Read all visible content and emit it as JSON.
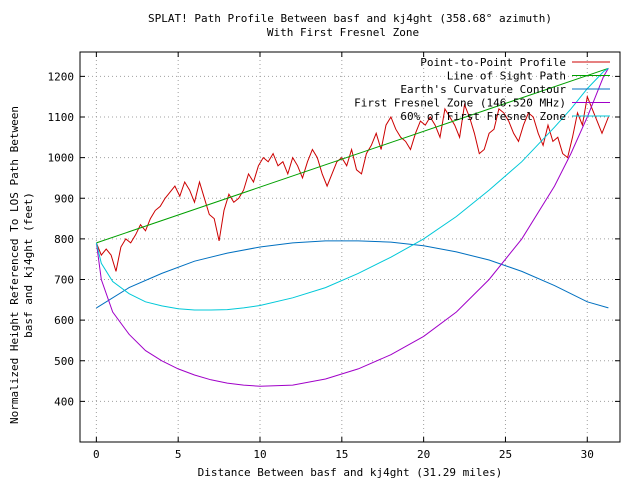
{
  "chart_data": {
    "type": "line",
    "title": "SPLAT! Path Profile Between basf and kj4ght (358.68° azimuth)",
    "subtitle": "With First Fresnel Zone",
    "xlabel": "Distance Between basf and kj4ght (31.29 miles)",
    "ylabel_line1": "Normalized Height Referenced To LOS Path Between",
    "ylabel_line2": "basf and kj4ght (feet)",
    "xlim": [
      -1,
      32
    ],
    "ylim": [
      300,
      1260
    ],
    "x_ticks": [
      0,
      5,
      10,
      15,
      20,
      25,
      30
    ],
    "y_ticks": [
      400,
      500,
      600,
      700,
      800,
      900,
      1000,
      1100,
      1200
    ],
    "grid": true,
    "legend_position": "top-right",
    "series": [
      {
        "name": "Point-to-Point Profile",
        "color": "#cc0000",
        "x": [
          0,
          0.3,
          0.6,
          0.9,
          1.2,
          1.5,
          1.8,
          2.1,
          2.4,
          2.7,
          3.0,
          3.3,
          3.6,
          3.9,
          4.2,
          4.5,
          4.8,
          5.1,
          5.4,
          5.7,
          6.0,
          6.3,
          6.6,
          6.9,
          7.2,
          7.5,
          7.8,
          8.1,
          8.4,
          8.7,
          9.0,
          9.3,
          9.6,
          9.9,
          10.2,
          10.5,
          10.8,
          11.1,
          11.4,
          11.7,
          12.0,
          12.3,
          12.6,
          12.9,
          13.2,
          13.5,
          13.8,
          14.1,
          14.4,
          14.7,
          15.0,
          15.3,
          15.6,
          15.9,
          16.2,
          16.5,
          16.8,
          17.1,
          17.4,
          17.7,
          18.0,
          18.3,
          18.6,
          18.9,
          19.2,
          19.5,
          19.8,
          20.1,
          20.4,
          20.7,
          21.0,
          21.3,
          21.6,
          21.9,
          22.2,
          22.5,
          22.8,
          23.1,
          23.4,
          23.7,
          24.0,
          24.3,
          24.6,
          24.9,
          25.2,
          25.5,
          25.8,
          26.1,
          26.4,
          26.7,
          27.0,
          27.3,
          27.6,
          27.9,
          28.2,
          28.5,
          28.8,
          29.1,
          29.4,
          29.7,
          30.0,
          30.3,
          30.6,
          30.9,
          31.29
        ],
        "y": [
          790,
          760,
          775,
          760,
          720,
          780,
          800,
          790,
          810,
          835,
          820,
          850,
          870,
          880,
          900,
          915,
          930,
          905,
          940,
          920,
          890,
          940,
          900,
          860,
          850,
          795,
          870,
          910,
          890,
          900,
          920,
          960,
          940,
          980,
          1000,
          990,
          1010,
          980,
          990,
          960,
          1000,
          980,
          950,
          990,
          1020,
          1000,
          960,
          930,
          960,
          990,
          1000,
          980,
          1020,
          970,
          960,
          1010,
          1030,
          1060,
          1020,
          1080,
          1100,
          1070,
          1050,
          1040,
          1020,
          1060,
          1090,
          1080,
          1100,
          1080,
          1050,
          1120,
          1100,
          1080,
          1050,
          1130,
          1100,
          1060,
          1010,
          1020,
          1060,
          1070,
          1120,
          1110,
          1090,
          1060,
          1040,
          1080,
          1110,
          1100,
          1060,
          1030,
          1080,
          1040,
          1050,
          1010,
          1000,
          1050,
          1110,
          1080,
          1150,
          1120,
          1090,
          1060,
          1100
        ]
      },
      {
        "name": "Line of Sight Path",
        "color": "#00a000",
        "x": [
          0,
          31.29
        ],
        "y": [
          790,
          1220
        ]
      },
      {
        "name": "Earth's Curvature Contour",
        "color": "#0070c0",
        "x": [
          0,
          2,
          4,
          6,
          8,
          10,
          12,
          14,
          16,
          18,
          20,
          22,
          24,
          26,
          28,
          30,
          31.29
        ],
        "y": [
          630,
          680,
          715,
          745,
          765,
          780,
          790,
          795,
          795,
          792,
          783,
          768,
          748,
          720,
          685,
          645,
          630
        ]
      },
      {
        "name": "First Fresnel Zone (146.520 MHz)",
        "color": "#a000c8",
        "x": [
          0,
          0.3,
          1,
          2,
          3,
          4,
          5,
          6,
          7,
          8,
          9,
          10,
          12,
          14,
          16,
          18,
          20,
          22,
          24,
          26,
          28,
          29,
          30,
          30.6,
          31,
          31.29
        ],
        "y": [
          790,
          700,
          620,
          565,
          525,
          500,
          480,
          465,
          453,
          445,
          440,
          437,
          440,
          455,
          480,
          515,
          560,
          620,
          700,
          800,
          930,
          1010,
          1100,
          1160,
          1200,
          1220
        ]
      },
      {
        "name": "60% of First Fresnel Zone",
        "color": "#00c8d8",
        "x": [
          0,
          0.3,
          1,
          2,
          3,
          4,
          5,
          6,
          7,
          8,
          9,
          10,
          12,
          14,
          16,
          18,
          20,
          22,
          24,
          26,
          28,
          29,
          30,
          30.6,
          31,
          31.29
        ],
        "y": [
          790,
          740,
          695,
          665,
          645,
          635,
          628,
          625,
          625,
          626,
          630,
          636,
          655,
          680,
          715,
          755,
          800,
          855,
          920,
          990,
          1075,
          1120,
          1170,
          1195,
          1212,
          1220
        ]
      }
    ]
  }
}
